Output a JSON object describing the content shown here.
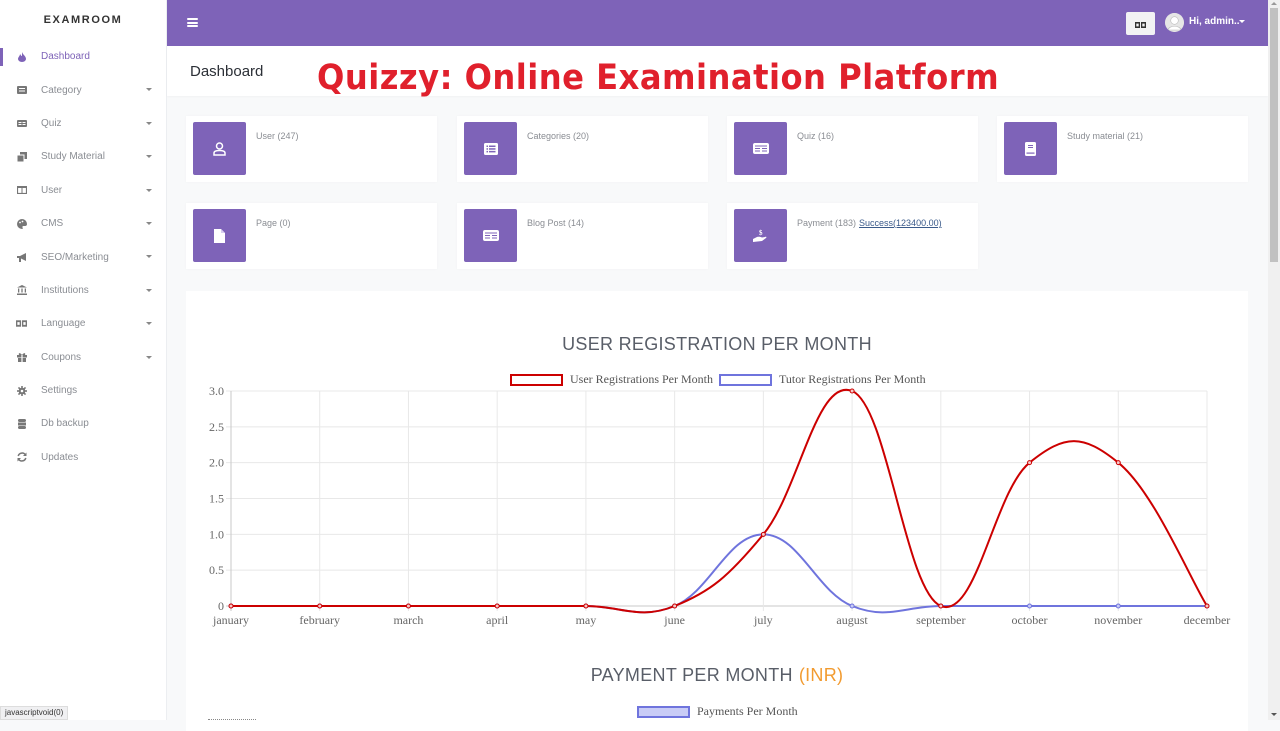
{
  "brand": "EXAMROOM",
  "sidebar": {
    "items": [
      {
        "label": "Dashboard",
        "icon": "fire-icon",
        "active": true,
        "has_submenu": false
      },
      {
        "label": "Category",
        "icon": "list-alt-icon",
        "has_submenu": true
      },
      {
        "label": "Quiz",
        "icon": "newspaper-icon",
        "has_submenu": true
      },
      {
        "label": "Study Material",
        "icon": "copy-icon",
        "has_submenu": true
      },
      {
        "label": "User",
        "icon": "columns-icon",
        "has_submenu": true
      },
      {
        "label": "CMS",
        "icon": "palette-icon",
        "has_submenu": true
      },
      {
        "label": "SEO/Marketing",
        "icon": "bullhorn-icon",
        "has_submenu": true
      },
      {
        "label": "Institutions",
        "icon": "university-icon",
        "has_submenu": true
      },
      {
        "label": "Language",
        "icon": "language-icon",
        "has_submenu": true
      },
      {
        "label": "Coupons",
        "icon": "gift-icon",
        "has_submenu": true
      },
      {
        "label": "Settings",
        "icon": "gear-icon",
        "has_submenu": false
      },
      {
        "label": "Db backup",
        "icon": "database-icon",
        "has_submenu": false
      },
      {
        "label": "Updates",
        "icon": "sync-icon",
        "has_submenu": false
      }
    ]
  },
  "topbar": {
    "menu_icon": "hamburger-icon",
    "language_icon": "language-icon",
    "user_greeting": "Hi, admin.."
  },
  "page": {
    "title": "Dashboard",
    "overlay_title": "Quizzy: Online Examination Platform"
  },
  "stats": [
    {
      "label": "User (247)",
      "icon": "user-icon"
    },
    {
      "label": "Categories (20)",
      "icon": "list-icon"
    },
    {
      "label": "Quiz (16)",
      "icon": "newspaper-icon"
    },
    {
      "label": "Study material (21)",
      "icon": "book-icon"
    },
    {
      "label": "Page (0)",
      "icon": "file-icon"
    },
    {
      "label": "Blog Post (14)",
      "icon": "newspaper-icon"
    },
    {
      "label": "Payment (183)",
      "link": "Success(123400.00)",
      "icon": "hand-holding-usd-icon"
    }
  ],
  "colors": {
    "accent": "#7e63b8",
    "overlay_title": "#e0202c",
    "user_series": "#cc0000",
    "tutor_series": "#6f74dd",
    "inr": "#f29b30"
  },
  "charts": {
    "registration_title": "USER REGISTRATION PER MONTH",
    "payment_title": "PAYMENT PER MONTH",
    "payment_currency": "(INR)",
    "payment_legend": "Payments Per Month"
  },
  "chart_data": [
    {
      "type": "line",
      "title": "USER REGISTRATION PER MONTH",
      "categories": [
        "january",
        "february",
        "march",
        "april",
        "may",
        "june",
        "july",
        "august",
        "september",
        "october",
        "november",
        "december"
      ],
      "series": [
        {
          "name": "User Registrations Per Month",
          "color": "#cc0000",
          "values": [
            0,
            0,
            0,
            0,
            0,
            0,
            1,
            3,
            0,
            2,
            2,
            0
          ]
        },
        {
          "name": "Tutor Registrations Per Month",
          "color": "#6f74dd",
          "values": [
            0,
            0,
            0,
            0,
            0,
            0,
            1,
            0,
            0,
            0,
            0,
            0
          ]
        }
      ],
      "yticks": [
        "0",
        "0.5",
        "1.0",
        "1.5",
        "2.0",
        "2.5",
        "3.0"
      ],
      "ylim": [
        0,
        3
      ],
      "xlabel": "",
      "ylabel": "",
      "grid": true,
      "legend_position": "top"
    },
    {
      "type": "bar",
      "title": "PAYMENT PER MONTH (INR)",
      "series": [
        {
          "name": "Payments Per Month",
          "color": "#6f74dd"
        }
      ],
      "legend_position": "top"
    }
  ],
  "status_bar": "javascriptvoid(0)"
}
